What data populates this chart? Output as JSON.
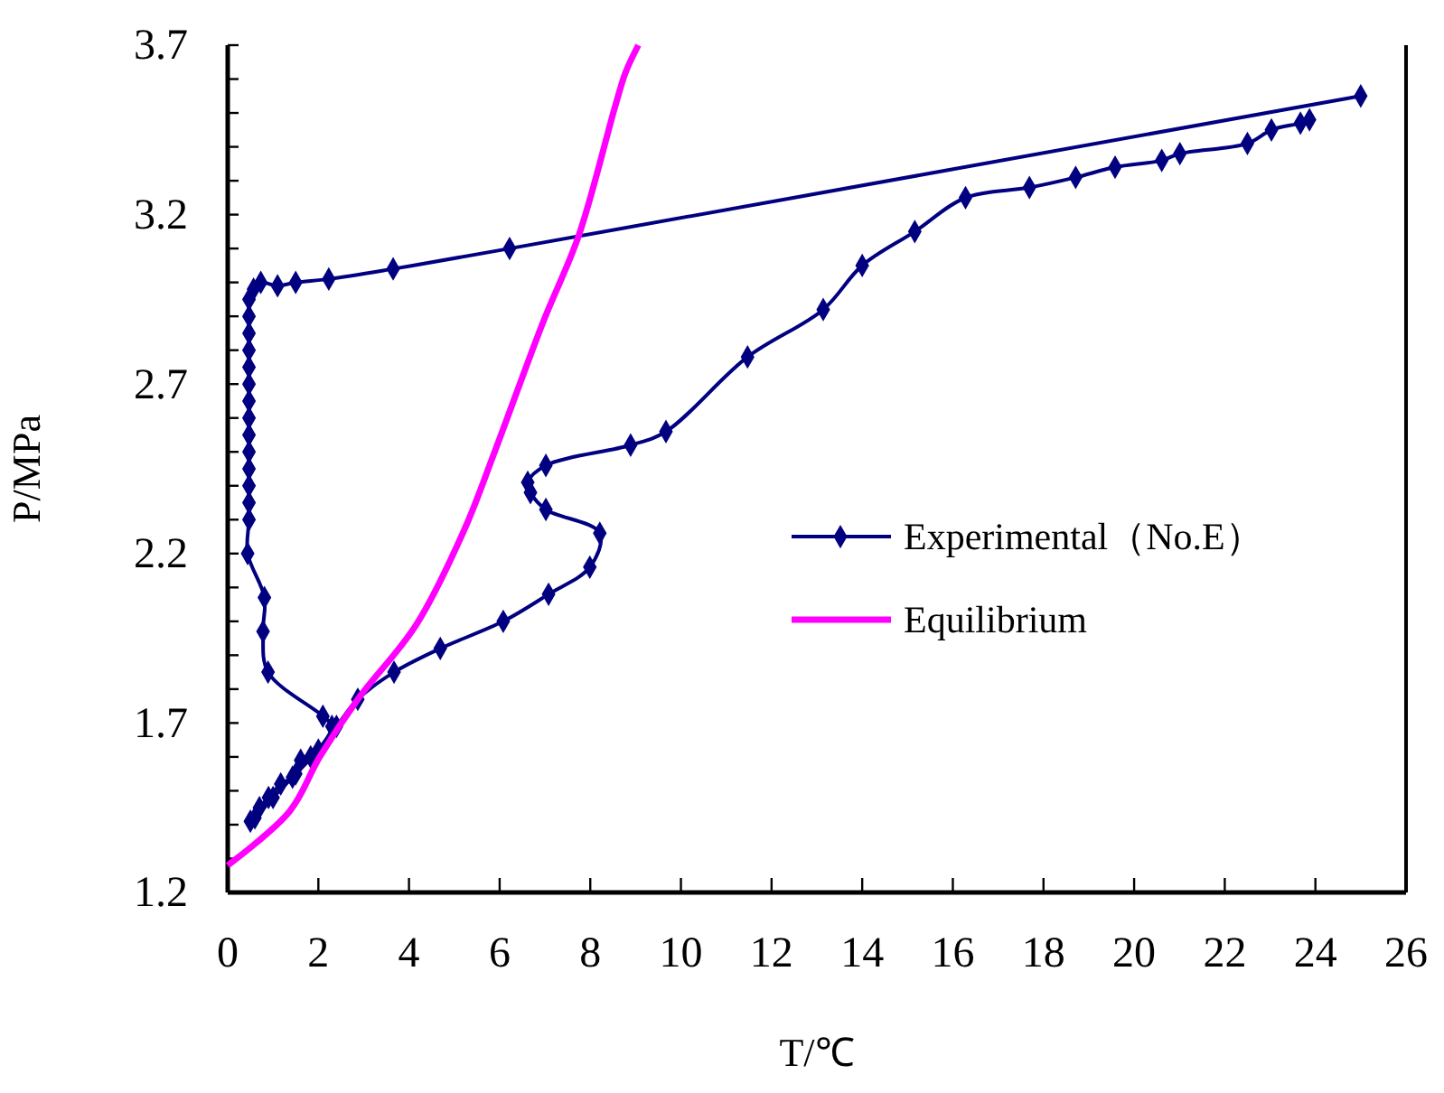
{
  "chart_data": {
    "type": "line",
    "xlabel": "T/℃",
    "ylabel": "P/MPa",
    "xlim": [
      0,
      26
    ],
    "xticks": [
      0,
      2,
      4,
      6,
      8,
      10,
      12,
      14,
      16,
      18,
      20,
      22,
      24,
      26
    ],
    "ylim": [
      1.2,
      3.7
    ],
    "yticks": [
      1.2,
      {
        "value": 1.3,
        "label": null
      },
      {
        "value": 1.4,
        "label": null
      },
      {
        "value": 1.5,
        "label": null
      },
      {
        "value": 1.6,
        "label": null
      },
      1.7,
      {
        "value": 1.8,
        "label": null
      },
      {
        "value": 1.9,
        "label": null
      },
      {
        "value": 2.0,
        "label": null
      },
      {
        "value": 2.1,
        "label": null
      },
      2.2,
      {
        "value": 2.3,
        "label": null
      },
      {
        "value": 2.4,
        "label": null
      },
      {
        "value": 2.5,
        "label": null
      },
      {
        "value": 2.6,
        "label": null
      },
      2.7,
      {
        "value": 2.8,
        "label": null
      },
      {
        "value": 2.9,
        "label": null
      },
      {
        "value": 3.0,
        "label": null
      },
      {
        "value": 3.1,
        "label": null
      },
      3.2,
      {
        "value": 3.3,
        "label": null
      },
      {
        "value": 3.4,
        "label": null
      },
      {
        "value": 3.5,
        "label": null
      },
      {
        "value": 3.6,
        "label": null
      },
      3.7
    ],
    "grid": false,
    "legend": "right",
    "series": [
      {
        "name": "Experimental（No.E）",
        "color": "#000080",
        "marker": "diamond",
        "line_style": "solid",
        "x": [
          25.0,
          6.22,
          3.65,
          2.23,
          1.5,
          1.1,
          0.73,
          0.57,
          0.47,
          0.47,
          0.47,
          0.47,
          0.47,
          0.47,
          0.47,
          0.47,
          0.47,
          0.47,
          0.47,
          0.47,
          0.47,
          0.47,
          0.44,
          0.81,
          0.78,
          0.89,
          2.1,
          2.3,
          1.83,
          1.61,
          1.43,
          1.17,
          0.9,
          0.7,
          0.5,
          0.6,
          1.0,
          1.5,
          2.0,
          2.4,
          2.87,
          3.67,
          4.69,
          6.08,
          7.08,
          7.99,
          8.21,
          7.02,
          6.68,
          6.62,
          7.02,
          8.89,
          9.67,
          11.47,
          13.14,
          14.0,
          15.16,
          16.28,
          17.69,
          18.71,
          19.58,
          20.61,
          21.01,
          22.5,
          23.03,
          23.67,
          23.87
        ],
        "values": [
          3.55,
          3.1,
          3.04,
          3.01,
          3.0,
          2.99,
          3.0,
          2.98,
          2.95,
          2.9,
          2.85,
          2.8,
          2.75,
          2.7,
          2.65,
          2.6,
          2.55,
          2.5,
          2.45,
          2.4,
          2.35,
          2.3,
          2.2,
          2.07,
          1.97,
          1.85,
          1.72,
          1.69,
          1.6,
          1.59,
          1.54,
          1.52,
          1.48,
          1.45,
          1.41,
          1.42,
          1.48,
          1.55,
          1.62,
          1.69,
          1.77,
          1.85,
          1.92,
          2.0,
          2.08,
          2.16,
          2.26,
          2.33,
          2.38,
          2.41,
          2.46,
          2.52,
          2.56,
          2.78,
          2.92,
          3.05,
          3.15,
          3.25,
          3.28,
          3.31,
          3.34,
          3.36,
          3.38,
          3.41,
          3.45,
          3.47,
          3.48
        ]
      },
      {
        "name": "Equilibrium",
        "color": "#ff00ff",
        "marker": "none",
        "line_style": "solid",
        "x": [
          0,
          1.37,
          2.03,
          2.87,
          4.16,
          5.22,
          5.89,
          6.95,
          7.75,
          8.55,
          8.78,
          9.06
        ],
        "values": [
          1.28,
          1.44,
          1.6,
          1.77,
          1.99,
          2.27,
          2.5,
          2.88,
          3.14,
          3.52,
          3.62,
          3.7
        ]
      }
    ]
  }
}
